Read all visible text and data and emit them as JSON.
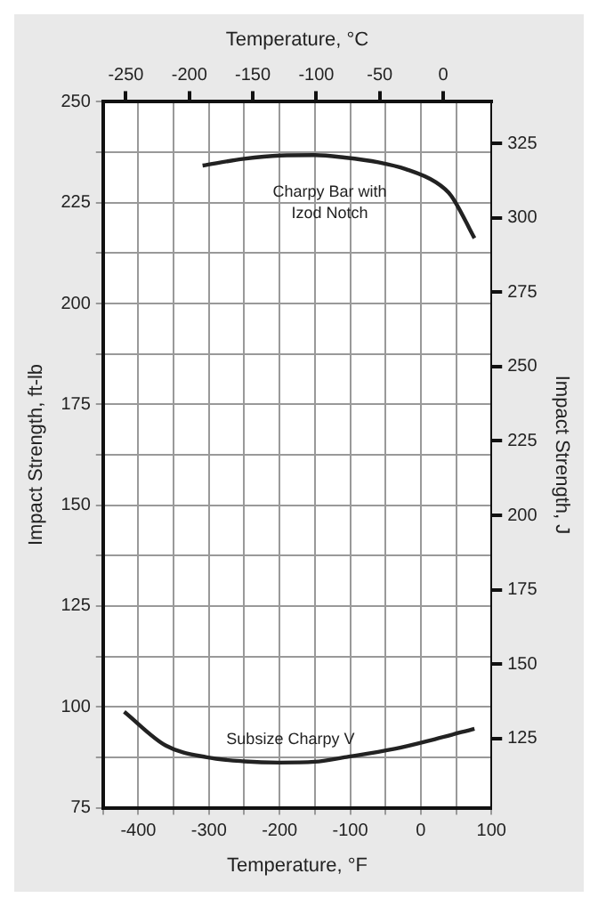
{
  "chart_data": {
    "type": "line",
    "xlabel": "Temperature, °F",
    "x2label": "Temperature, °C",
    "ylabel": "Impact Strength, ft-lb",
    "y2label": "Impact Strength, J",
    "xlim": [
      -450,
      100
    ],
    "xticks": [
      {
        "value": -450,
        "label": null
      },
      -400,
      {
        "value": -350,
        "label": null
      },
      -300,
      {
        "value": -250,
        "label": null
      },
      -200,
      {
        "value": -150,
        "label": null
      },
      -100,
      {
        "value": -50,
        "label": null
      },
      0,
      {
        "value": 50,
        "label": null
      },
      100
    ],
    "x2lim": [
      -268,
      38
    ],
    "x2ticks": [
      -250,
      -200,
      -150,
      -100,
      -50,
      0
    ],
    "ylim": [
      75,
      250
    ],
    "yticks": [
      75,
      {
        "value": 87.5,
        "label": null
      },
      100,
      {
        "value": 112.5,
        "label": null
      },
      125,
      {
        "value": 137.5,
        "label": null
      },
      150,
      {
        "value": 162.5,
        "label": null
      },
      175,
      {
        "value": 187.5,
        "label": null
      },
      200,
      {
        "value": 212.5,
        "label": null
      },
      225,
      {
        "value": 237.5,
        "label": null
      },
      250
    ],
    "y2lim": [
      101.7,
      339
    ],
    "y2ticks": [
      125,
      150,
      175,
      200,
      225,
      250,
      275,
      300,
      325
    ],
    "grid": true,
    "legend": false,
    "marker": "none",
    "line_style": "solid",
    "series": [
      {
        "name": "Charpy Bar with Izod Notch",
        "color": "#222222",
        "x": [
          -309,
          -250,
          -199,
          -150,
          -108,
          -60,
          -21,
          20,
          43,
          76
        ],
        "values": [
          234.2,
          235.9,
          236.7,
          236.8,
          236.2,
          235.0,
          233.3,
          230.2,
          226.7,
          216.2
        ]
      },
      {
        "name": "Subsize Charpy V",
        "color": "#222222",
        "x": [
          -420,
          -361,
          -303,
          -250,
          -201,
          -150,
          -108,
          -37,
          20,
          76
        ],
        "values": [
          98.8,
          90.4,
          87.5,
          86.5,
          86.2,
          86.4,
          87.5,
          89.6,
          92.0,
          94.6
        ]
      }
    ]
  }
}
